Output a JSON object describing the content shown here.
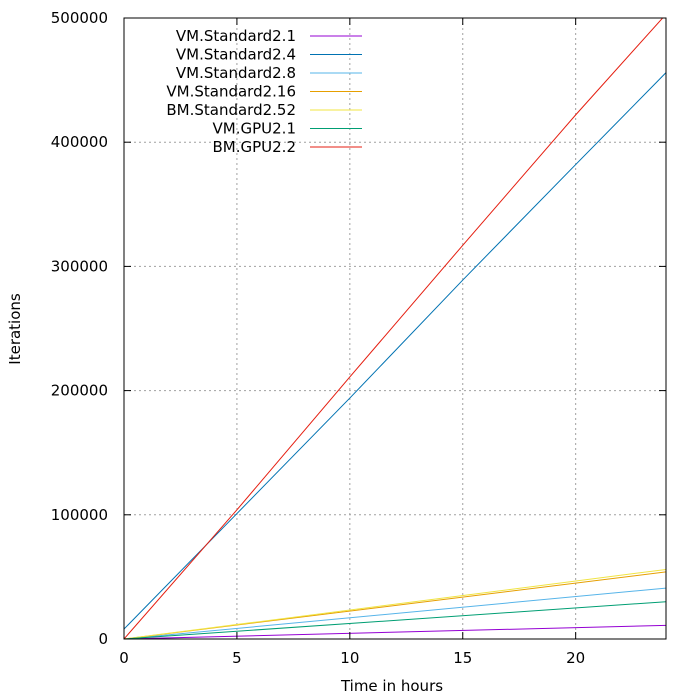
{
  "chart_data": {
    "type": "line",
    "title": "",
    "xlabel": "Time in hours",
    "ylabel": "Iterations",
    "xlim": [
      0,
      24
    ],
    "ylim": [
      0,
      500000
    ],
    "x_ticks": [
      0,
      5,
      10,
      15,
      20
    ],
    "y_ticks": [
      0,
      100000,
      200000,
      300000,
      400000,
      500000
    ],
    "x_tick_labels": [
      "0",
      "5",
      "10",
      "15",
      "20"
    ],
    "y_tick_labels": [
      "0",
      "100000",
      "200000",
      "300000",
      "400000",
      "500000"
    ],
    "grid": true,
    "legend_position": "top-left",
    "series": [
      {
        "name": "VM.Standard2.1",
        "color": "#9400d3",
        "x": [
          0,
          24
        ],
        "y": [
          0,
          11000
        ]
      },
      {
        "name": "VM.Standard2.4",
        "color": "#0072b2",
        "x": [
          0,
          5,
          10,
          15,
          20,
          24
        ],
        "y": [
          8000,
          101000,
          194000,
          289000,
          382000,
          456000
        ]
      },
      {
        "name": "VM.Standard2.8",
        "color": "#56b4e9",
        "x": [
          0,
          24
        ],
        "y": [
          0,
          41000
        ]
      },
      {
        "name": "VM.Standard2.16",
        "color": "#e69f00",
        "x": [
          0,
          24
        ],
        "y": [
          0,
          54000
        ]
      },
      {
        "name": "BM.Standard2.52",
        "color": "#f0e442",
        "x": [
          0,
          24
        ],
        "y": [
          0,
          56000
        ]
      },
      {
        "name": "VM.GPU2.1",
        "color": "#009e73",
        "x": [
          0,
          24
        ],
        "y": [
          0,
          30000
        ]
      },
      {
        "name": "BM.GPU2.2",
        "color": "#e51e10",
        "x": [
          0,
          5,
          10,
          15,
          20,
          24
        ],
        "y": [
          0,
          104000,
          211000,
          317000,
          422000,
          503000
        ]
      }
    ]
  }
}
